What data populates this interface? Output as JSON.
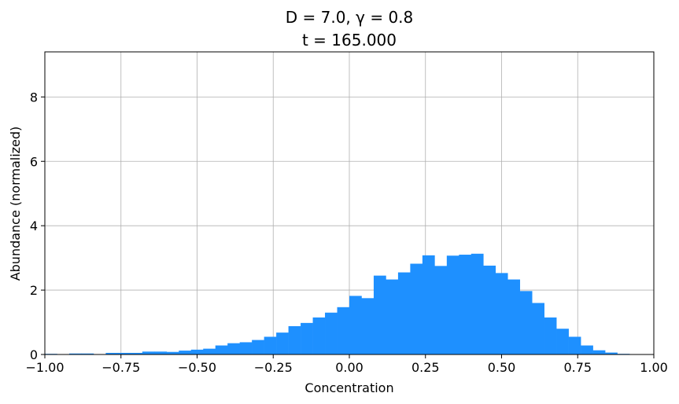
{
  "chart_data": {
    "type": "bar",
    "title_line1": "D = 7.0, γ = 0.8",
    "title_line2": "t = 165.000",
    "xlabel": "Concentration",
    "ylabel": "Abundance (normalized)",
    "xlim": [
      -1.0,
      1.0
    ],
    "ylim": [
      0,
      9.4
    ],
    "xticks": [
      -1.0,
      -0.75,
      -0.5,
      -0.25,
      0.0,
      0.25,
      0.5,
      0.75,
      1.0
    ],
    "xtick_labels": [
      "−1.00",
      "−0.75",
      "−0.50",
      "−0.25",
      "0.00",
      "0.25",
      "0.50",
      "0.75",
      "1.00"
    ],
    "yticks": [
      0,
      2,
      4,
      6,
      8
    ],
    "ytick_labels": [
      "0",
      "2",
      "4",
      "6",
      "8"
    ],
    "grid": true,
    "bar_color": "#1e90ff",
    "bin_width": 0.04,
    "bin_starts": [
      -1.0,
      -0.96,
      -0.92,
      -0.88,
      -0.84,
      -0.8,
      -0.76,
      -0.72,
      -0.68,
      -0.64,
      -0.6,
      -0.56,
      -0.52,
      -0.48,
      -0.44,
      -0.4,
      -0.36,
      -0.32,
      -0.28,
      -0.24,
      -0.2,
      -0.16,
      -0.12,
      -0.08,
      -0.04,
      0.0,
      0.04,
      0.08,
      0.12,
      0.16,
      0.2,
      0.24,
      0.28,
      0.32,
      0.36,
      0.4,
      0.44,
      0.48,
      0.52,
      0.56,
      0.6,
      0.64,
      0.68,
      0.72,
      0.76,
      0.8,
      0.84,
      0.88,
      0.92,
      0.96
    ],
    "values": [
      0.02,
      0.0,
      0.03,
      0.03,
      0.0,
      0.05,
      0.05,
      0.05,
      0.09,
      0.09,
      0.08,
      0.12,
      0.15,
      0.18,
      0.28,
      0.35,
      0.38,
      0.45,
      0.55,
      0.68,
      0.88,
      0.98,
      1.15,
      1.3,
      1.47,
      1.82,
      1.75,
      2.45,
      2.33,
      2.55,
      2.82,
      3.08,
      2.75,
      3.07,
      3.1,
      3.13,
      2.76,
      2.53,
      2.33,
      1.97,
      1.6,
      1.15,
      0.8,
      0.55,
      0.28,
      0.13,
      0.06,
      0.02,
      0.01,
      0.0
    ]
  }
}
